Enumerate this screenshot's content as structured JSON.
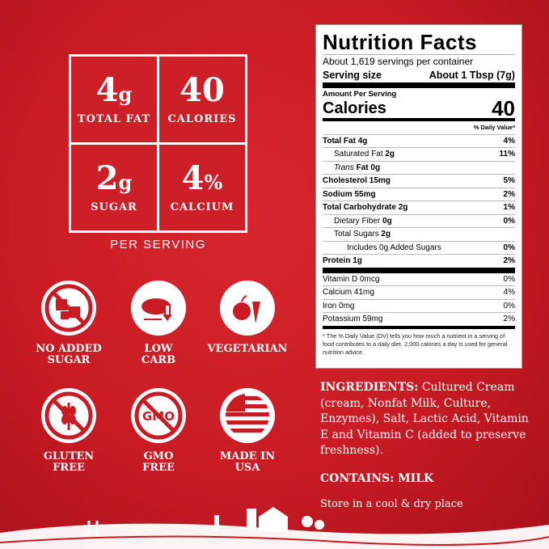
{
  "highlights": [
    {
      "value": "4",
      "unit": "g",
      "label": "TOTAL FAT"
    },
    {
      "value": "40",
      "unit": "",
      "label": "CALORIES"
    },
    {
      "value": "2",
      "unit": "g",
      "label": "SUGAR"
    },
    {
      "value": "4",
      "unit": "%",
      "label": "CALCIUM"
    }
  ],
  "per_serving": "PER SERVING",
  "badges": [
    {
      "icon": "no-sugar-cubes-icon",
      "line1": "NO ADDED",
      "line2": "SUGAR"
    },
    {
      "icon": "low-carb-bread-icon",
      "line1": "LOW",
      "line2": "CARB"
    },
    {
      "icon": "vegetables-icon",
      "line1": "VEGETARIAN",
      "line2": ""
    },
    {
      "icon": "no-wheat-icon",
      "line1": "GLUTEN",
      "line2": "FREE"
    },
    {
      "icon": "no-gmo-icon",
      "line1": "GMO",
      "line2": "FREE",
      "icon_text": "GMO"
    },
    {
      "icon": "us-flag-icon",
      "line1": "MADE IN",
      "line2": "USA"
    }
  ],
  "nutrition": {
    "title": "Nutrition Facts",
    "servings": "About 1,619 servings per container",
    "serving_size_label": "Serving size",
    "serving_size": "About 1 Tbsp (7g)",
    "amount_per_serving": "Amount Per Serving",
    "calories_label": "Calories",
    "calories": "40",
    "dv_header": "% Daily Value*",
    "rows": [
      {
        "name": "Total Fat",
        "amount": "4g",
        "dv": "4%"
      },
      {
        "name": "Saturated Fat",
        "amount": "2g",
        "dv": "11%"
      },
      {
        "name": "Trans",
        "amount": "Fat 0g",
        "dv": ""
      },
      {
        "name": "Cholesterol",
        "amount": "15mg",
        "dv": "5%"
      },
      {
        "name": "Sodium",
        "amount": "55mg",
        "dv": "2%"
      },
      {
        "name": "Total Carbohydrate",
        "amount": "2g",
        "dv": "1%"
      },
      {
        "name": "Dietary Fiber",
        "amount": "0g",
        "dv": "0%"
      },
      {
        "name": "Total Sugars",
        "amount": "2g",
        "dv": ""
      },
      {
        "name": "Includes 0g Added Sugars",
        "amount": "",
        "dv": "0%"
      },
      {
        "name": "Protein",
        "amount": "1g",
        "dv": "2%"
      }
    ],
    "vitamins": [
      {
        "name": "Vitamin D 0mcg",
        "dv": "0%"
      },
      {
        "name": "Calcium 41mg",
        "dv": "4%"
      },
      {
        "name": "Iron 0mg",
        "dv": "0%"
      },
      {
        "name": "Potassium 59mg",
        "dv": "2%"
      }
    ],
    "footnote": "* The % Daily Value (DV) tells you how much a nutrient in a serving of food contributes to a daily diet. 2,000 calories a day is used for general nutrition advice."
  },
  "ingredients_label": "INGREDIENTS:",
  "ingredients": "Cultured Cream (cream, Nonfat Milk, Culture, Enzymes), Salt, Lactic Acid, Vitamin E and Vitamin C (added to preserve freshness).",
  "contains": "CONTAINS: MILK",
  "storage": "Store in a cool & dry place",
  "colors": {
    "background": "#c81b24",
    "text": "#ffffff"
  }
}
